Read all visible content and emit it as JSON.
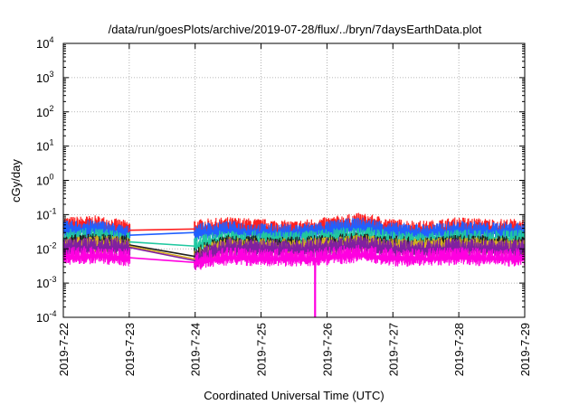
{
  "chart_data": {
    "type": "line",
    "title": "/data/run/goesPlots/archive/2019-07-28/flux/../bryn/7daysEarthData.plot",
    "xlabel": "Coordinated Universal Time (UTC)",
    "ylabel": "cGy/day",
    "x_ticks": [
      "2019-7-22",
      "2019-7-23",
      "2019-7-24",
      "2019-7-25",
      "2019-7-26",
      "2019-7-27",
      "2019-7-28",
      "2019-7-29"
    ],
    "y_ticks": [
      {
        "base": "10",
        "exp": "-4"
      },
      {
        "base": "10",
        "exp": "-3"
      },
      {
        "base": "10",
        "exp": "-2"
      },
      {
        "base": "10",
        "exp": "-1"
      },
      {
        "base": "10",
        "exp": "0"
      },
      {
        "base": "10",
        "exp": "1"
      },
      {
        "base": "10",
        "exp": "2"
      },
      {
        "base": "10",
        "exp": "3"
      },
      {
        "base": "10",
        "exp": "4"
      }
    ],
    "y_scale": "log",
    "ylim": [
      0.0001,
      10000
    ],
    "xlim": [
      "2019-07-22",
      "2019-07-29"
    ],
    "grid": true,
    "series": [
      {
        "color": "#ff2020",
        "points": [
          [
            "2019-07-22",
            0.045
          ],
          [
            "2019-07-22T12:00",
            0.05
          ],
          [
            "2019-07-23",
            0.035
          ],
          [
            "2019-07-24",
            0.038
          ],
          [
            "2019-07-24T12:00",
            0.045
          ],
          [
            "2019-07-25",
            0.04
          ],
          [
            "2019-07-25T12:00",
            0.035
          ],
          [
            "2019-07-26",
            0.045
          ],
          [
            "2019-07-26T12:00",
            0.06
          ],
          [
            "2019-07-27",
            0.04
          ],
          [
            "2019-07-27T12:00",
            0.035
          ],
          [
            "2019-07-28",
            0.045
          ],
          [
            "2019-07-28T12:00",
            0.04
          ],
          [
            "2019-07-29",
            0.04
          ]
        ]
      },
      {
        "color": "#2060ff",
        "points": [
          [
            "2019-07-22",
            0.035
          ],
          [
            "2019-07-22T12:00",
            0.038
          ],
          [
            "2019-07-23",
            0.025
          ],
          [
            "2019-07-24",
            0.03
          ],
          [
            "2019-07-24T12:00",
            0.035
          ],
          [
            "2019-07-25",
            0.03
          ],
          [
            "2019-07-25T12:00",
            0.028
          ],
          [
            "2019-07-26",
            0.035
          ],
          [
            "2019-07-26T12:00",
            0.045
          ],
          [
            "2019-07-27",
            0.032
          ],
          [
            "2019-07-27T12:00",
            0.028
          ],
          [
            "2019-07-28",
            0.035
          ],
          [
            "2019-07-28T12:00",
            0.032
          ],
          [
            "2019-07-29",
            0.032
          ]
        ]
      },
      {
        "color": "#20c8a0",
        "points": [
          [
            "2019-07-22",
            0.02
          ],
          [
            "2019-07-22T12:00",
            0.022
          ],
          [
            "2019-07-23",
            0.016
          ],
          [
            "2019-07-24",
            0.012
          ],
          [
            "2019-07-24T12:00",
            0.02
          ],
          [
            "2019-07-25",
            0.018
          ],
          [
            "2019-07-25T12:00",
            0.017
          ],
          [
            "2019-07-26",
            0.02
          ],
          [
            "2019-07-26T12:00",
            0.025
          ],
          [
            "2019-07-27",
            0.018
          ],
          [
            "2019-07-27T12:00",
            0.016
          ],
          [
            "2019-07-28",
            0.02
          ],
          [
            "2019-07-28T12:00",
            0.019
          ],
          [
            "2019-07-29",
            0.019
          ]
        ]
      },
      {
        "color": "#202020",
        "points": [
          [
            "2019-07-22",
            0.014
          ],
          [
            "2019-07-22T12:00",
            0.015
          ],
          [
            "2019-07-23",
            0.013
          ],
          [
            "2019-07-24",
            0.006
          ],
          [
            "2019-07-24T12:00",
            0.014
          ],
          [
            "2019-07-25",
            0.013
          ],
          [
            "2019-07-25T12:00",
            0.012
          ],
          [
            "2019-07-26",
            0.014
          ],
          [
            "2019-07-26T12:00",
            0.016
          ],
          [
            "2019-07-27",
            0.013
          ],
          [
            "2019-07-27T12:00",
            0.012
          ],
          [
            "2019-07-28",
            0.014
          ],
          [
            "2019-07-28T12:00",
            0.013
          ],
          [
            "2019-07-29",
            0.013
          ]
        ]
      },
      {
        "color": "#d8b020",
        "points": [
          [
            "2019-07-22",
            0.012
          ],
          [
            "2019-07-22T12:00",
            0.013
          ],
          [
            "2019-07-23",
            0.012
          ],
          [
            "2019-07-24",
            0.005
          ],
          [
            "2019-07-24T12:00",
            0.012
          ],
          [
            "2019-07-25",
            0.011
          ],
          [
            "2019-07-25T12:00",
            0.011
          ],
          [
            "2019-07-26",
            0.012
          ],
          [
            "2019-07-26T12:00",
            0.014
          ],
          [
            "2019-07-27",
            0.011
          ],
          [
            "2019-07-27T12:00",
            0.011
          ],
          [
            "2019-07-28",
            0.012
          ],
          [
            "2019-07-28T12:00",
            0.011
          ],
          [
            "2019-07-29",
            0.011
          ]
        ]
      },
      {
        "color": "#8020a0",
        "points": [
          [
            "2019-07-22",
            0.011
          ],
          [
            "2019-07-22T12:00",
            0.012
          ],
          [
            "2019-07-23",
            0.011
          ],
          [
            "2019-07-24",
            0.0045
          ],
          [
            "2019-07-24T12:00",
            0.011
          ],
          [
            "2019-07-25",
            0.01
          ],
          [
            "2019-07-25T12:00",
            0.01
          ],
          [
            "2019-07-26",
            0.011
          ],
          [
            "2019-07-26T12:00",
            0.013
          ],
          [
            "2019-07-27",
            0.01
          ],
          [
            "2019-07-27T12:00",
            0.01
          ],
          [
            "2019-07-28",
            0.011
          ],
          [
            "2019-07-28T12:00",
            0.01
          ],
          [
            "2019-07-29",
            0.01
          ]
        ]
      },
      {
        "color": "#ff00e0",
        "points": [
          [
            "2019-07-22",
            0.006
          ],
          [
            "2019-07-22T12:00",
            0.0065
          ],
          [
            "2019-07-23",
            0.0055
          ],
          [
            "2019-07-24",
            0.004
          ],
          [
            "2019-07-24T12:00",
            0.006
          ],
          [
            "2019-07-25",
            0.0055
          ],
          [
            "2019-07-25T12:00",
            0.0055
          ],
          [
            "2019-07-25T19:30",
            0.0055
          ],
          [
            "2019-07-25T19:40",
            0.0001
          ],
          [
            "2019-07-25T19:50",
            0.0055
          ],
          [
            "2019-07-26",
            0.006
          ],
          [
            "2019-07-26T12:00",
            0.007
          ],
          [
            "2019-07-27",
            0.0055
          ],
          [
            "2019-07-27T12:00",
            0.0055
          ],
          [
            "2019-07-28",
            0.006
          ],
          [
            "2019-07-28T12:00",
            0.0055
          ],
          [
            "2019-07-29",
            0.0055
          ]
        ]
      }
    ]
  }
}
